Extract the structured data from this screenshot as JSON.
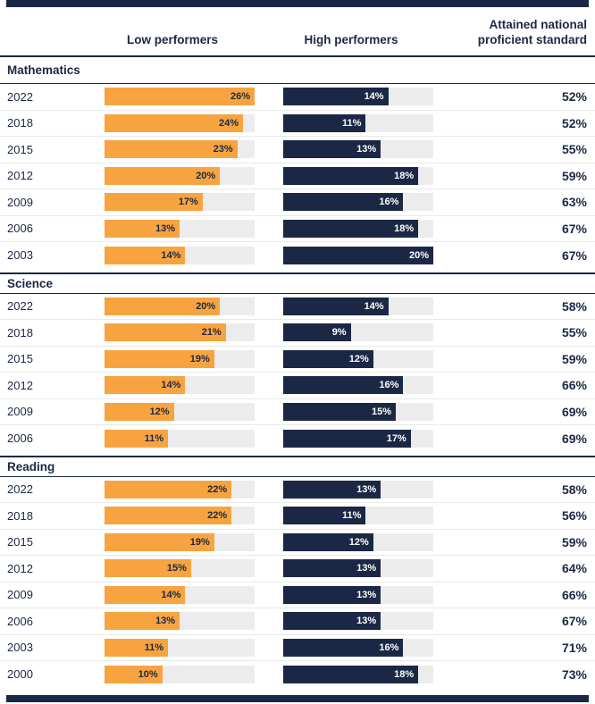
{
  "header": {
    "col_low": "Low performers",
    "col_high": "High performers",
    "col_attained_line1": "Attained national",
    "col_attained_line2": "proficient standard"
  },
  "colors": {
    "navy": "#1B2845",
    "orange": "#F7A440",
    "track_gray": "#ECECEC",
    "row_separator": "#E9E9E9"
  },
  "chart_data": {
    "type": "bar",
    "orientation": "horizontal",
    "value_suffix": "%",
    "scale": {
      "low_axis_max": 26,
      "high_axis_max": 20
    },
    "legend_position": "top",
    "grid": false,
    "series_names": [
      "Low performers",
      "High performers",
      "Attained national proficient standard"
    ],
    "sections": [
      {
        "title": "Mathematics",
        "rows": [
          {
            "year": "2022",
            "low": 26,
            "high": 14,
            "attained": 52
          },
          {
            "year": "2018",
            "low": 24,
            "high": 11,
            "attained": 52
          },
          {
            "year": "2015",
            "low": 23,
            "high": 13,
            "attained": 55
          },
          {
            "year": "2012",
            "low": 20,
            "high": 18,
            "attained": 59
          },
          {
            "year": "2009",
            "low": 17,
            "high": 16,
            "attained": 63
          },
          {
            "year": "2006",
            "low": 13,
            "high": 18,
            "attained": 67
          },
          {
            "year": "2003",
            "low": 14,
            "high": 20,
            "attained": 67
          }
        ]
      },
      {
        "title": "Science",
        "rows": [
          {
            "year": "2022",
            "low": 20,
            "high": 14,
            "attained": 58
          },
          {
            "year": "2018",
            "low": 21,
            "high": 9,
            "attained": 55
          },
          {
            "year": "2015",
            "low": 19,
            "high": 12,
            "attained": 59
          },
          {
            "year": "2012",
            "low": 14,
            "high": 16,
            "attained": 66
          },
          {
            "year": "2009",
            "low": 12,
            "high": 15,
            "attained": 69
          },
          {
            "year": "2006",
            "low": 11,
            "high": 17,
            "attained": 69
          }
        ]
      },
      {
        "title": "Reading",
        "rows": [
          {
            "year": "2022",
            "low": 22,
            "high": 13,
            "attained": 58
          },
          {
            "year": "2018",
            "low": 22,
            "high": 11,
            "attained": 56
          },
          {
            "year": "2015",
            "low": 19,
            "high": 12,
            "attained": 59
          },
          {
            "year": "2012",
            "low": 15,
            "high": 13,
            "attained": 64
          },
          {
            "year": "2009",
            "low": 14,
            "high": 13,
            "attained": 66
          },
          {
            "year": "2006",
            "low": 13,
            "high": 13,
            "attained": 67
          },
          {
            "year": "2003",
            "low": 11,
            "high": 16,
            "attained": 71
          },
          {
            "year": "2000",
            "low": 10,
            "high": 18,
            "attained": 73
          }
        ]
      }
    ]
  }
}
